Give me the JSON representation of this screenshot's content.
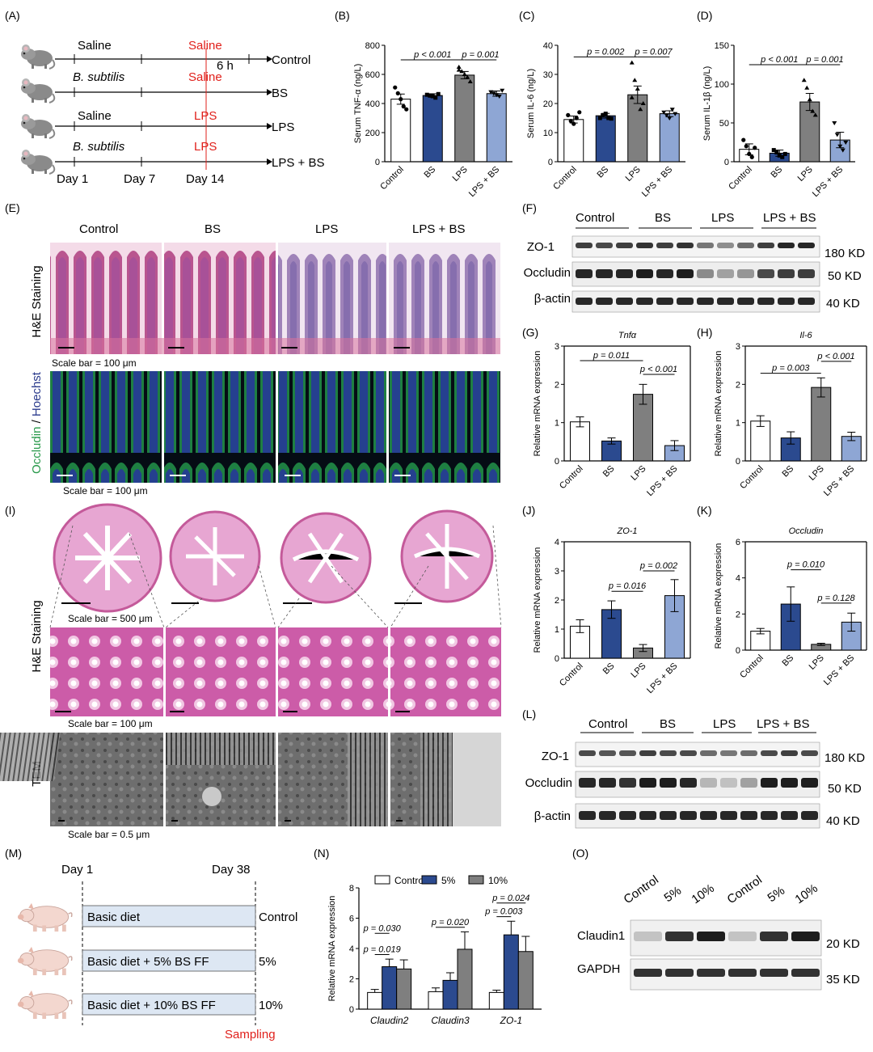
{
  "colors": {
    "control": "#ffffff",
    "bs": "#2b4a8f",
    "lps": "#7f7f7f",
    "lps_bs": "#8ea6d4",
    "red_text": "#e0201b",
    "he_pink": "#c45a9a",
    "fluor_green": "#2a9a4c",
    "fluor_blue": "#2a3a8c",
    "diet_box": "#dde7f3"
  },
  "panel_letters": [
    "(A)",
    "(B)",
    "(C)",
    "(D)",
    "(E)",
    "(F)",
    "(G)",
    "(H)",
    "(I)",
    "(J)",
    "(K)",
    "(L)",
    "(M)",
    "(N)",
    "(O)"
  ],
  "panel_A": {
    "rows": [
      {
        "left": "Saline",
        "left_italic": false,
        "right": "Saline",
        "end": "Control"
      },
      {
        "left": "B. subtilis",
        "left_italic": true,
        "right": "Saline",
        "end": "BS"
      },
      {
        "left": "Saline",
        "left_italic": false,
        "right": "LPS",
        "end": "LPS"
      },
      {
        "left": "B. subtilis",
        "left_italic": true,
        "right": "LPS",
        "end": "LPS + BS"
      }
    ],
    "six_h": "6 h",
    "days": [
      "Day 1",
      "Day 7",
      "Day 14"
    ]
  },
  "groups": [
    "Control",
    "BS",
    "LPS",
    "LPS + BS"
  ],
  "chart_data": [
    {
      "panel": "B",
      "type": "bar",
      "ylabel": "Serum TNF-α (ng/L)",
      "ylim": [
        0,
        800
      ],
      "yticks": [
        0,
        200,
        400,
        600,
        800
      ],
      "categories": [
        "Control",
        "BS",
        "LPS",
        "LPS + BS"
      ],
      "values": [
        430,
        455,
        595,
        468
      ],
      "errors": [
        35,
        12,
        25,
        18
      ],
      "points": [
        [
          510,
          470,
          430,
          380,
          360
        ],
        [
          460,
          455,
          450,
          440,
          465
        ],
        [
          650,
          620,
          600,
          580,
          550,
          630
        ],
        [
          480,
          470,
          460,
          450,
          490
        ]
      ],
      "annotations": [
        {
          "text": "p < 0.001",
          "from": 0,
          "to": 2,
          "y": 700
        },
        {
          "text": "p = 0.001",
          "from": 2,
          "to": 3,
          "y": 700
        }
      ]
    },
    {
      "panel": "C",
      "type": "bar",
      "ylabel": "Serum IL-6 (ng/L)",
      "ylim": [
        0,
        40
      ],
      "yticks": [
        0,
        10,
        20,
        30,
        40
      ],
      "categories": [
        "Control",
        "BS",
        "LPS",
        "LPS + BS"
      ],
      "values": [
        14.5,
        15.8,
        23,
        16.5
      ],
      "errors": [
        1.2,
        0.8,
        3,
        1
      ],
      "points": [
        [
          16,
          14,
          13,
          15,
          17
        ],
        [
          15,
          16,
          16.5,
          15,
          14.8
        ],
        [
          34,
          28,
          25,
          18,
          20,
          22
        ],
        [
          17,
          16,
          15,
          18,
          16.5
        ]
      ],
      "annotations": [
        {
          "text": "p = 0.002",
          "from": 0,
          "to": 2,
          "y": 36
        },
        {
          "text": "p = 0.007",
          "from": 2,
          "to": 3,
          "y": 36
        }
      ]
    },
    {
      "panel": "D",
      "type": "bar",
      "ylabel": "Serum IL-1β (ng/L)",
      "ylim": [
        0,
        150
      ],
      "yticks": [
        0,
        50,
        100,
        150
      ],
      "categories": [
        "Control",
        "BS",
        "LPS",
        "LPS + BS"
      ],
      "values": [
        16,
        11,
        77,
        28
      ],
      "errors": [
        7,
        4,
        11,
        10
      ],
      "points": [
        [
          28,
          20,
          10,
          6,
          18
        ],
        [
          15,
          12,
          8,
          6,
          10
        ],
        [
          105,
          95,
          80,
          65,
          60
        ],
        [
          50,
          35,
          20,
          15,
          25
        ]
      ],
      "annotations": [
        {
          "text": "p < 0.001",
          "from": 0,
          "to": 2,
          "y": 125
        },
        {
          "text": "p = 0.001",
          "from": 2,
          "to": 3,
          "y": 125
        }
      ]
    },
    {
      "panel": "G",
      "type": "bar",
      "title": "Tnfα",
      "ylabel": "Relative mRNA expression",
      "ylim": [
        0,
        3
      ],
      "yticks": [
        0,
        1,
        2,
        3
      ],
      "categories": [
        "Control",
        "BS",
        "LPS",
        "LPS + BS"
      ],
      "values": [
        1.02,
        0.52,
        1.74,
        0.4
      ],
      "errors": [
        0.13,
        0.08,
        0.26,
        0.13
      ],
      "annotations": [
        {
          "text": "p = 0.011",
          "from": 0,
          "to": 2,
          "y": 2.62
        },
        {
          "text": "p < 0.001",
          "from": 2,
          "to": 3,
          "y": 2.26
        }
      ]
    },
    {
      "panel": "H",
      "type": "bar",
      "title": "Il-6",
      "ylabel": "Relative mRNA expression",
      "ylim": [
        0,
        3
      ],
      "yticks": [
        0,
        1,
        2,
        3
      ],
      "categories": [
        "Control",
        "BS",
        "LPS",
        "LPS + BS"
      ],
      "values": [
        1.04,
        0.6,
        1.92,
        0.64
      ],
      "errors": [
        0.14,
        0.16,
        0.25,
        0.11
      ],
      "annotations": [
        {
          "text": "p = 0.003",
          "from": 0,
          "to": 2,
          "y": 2.29
        },
        {
          "text": "p < 0.001",
          "from": 2,
          "to": 3,
          "y": 2.6
        }
      ]
    },
    {
      "panel": "J",
      "type": "bar",
      "title": "ZO-1",
      "ylabel": "Relative mRNA expression",
      "ylim": [
        0,
        4
      ],
      "yticks": [
        0,
        1,
        2,
        3,
        4
      ],
      "categories": [
        "Control",
        "BS",
        "LPS",
        "LPS + BS"
      ],
      "values": [
        1.1,
        1.67,
        0.35,
        2.15
      ],
      "errors": [
        0.22,
        0.3,
        0.12,
        0.55
      ],
      "annotations": [
        {
          "text": "p = 0.016",
          "from": 1,
          "to": 2,
          "y": 2.3
        },
        {
          "text": "p = 0.002",
          "from": 2,
          "to": 3,
          "y": 3.0
        }
      ]
    },
    {
      "panel": "K",
      "type": "bar",
      "title": "Occludin",
      "ylabel": "Relative mRNA expression",
      "ylim": [
        0,
        6
      ],
      "yticks": [
        0,
        2,
        4,
        6
      ],
      "categories": [
        "Control",
        "BS",
        "LPS",
        "LPS + BS"
      ],
      "values": [
        1.05,
        2.55,
        0.32,
        1.55
      ],
      "errors": [
        0.15,
        0.95,
        0.06,
        0.5
      ],
      "annotations": [
        {
          "text": "p = 0.010",
          "from": 1,
          "to": 2,
          "y": 4.45
        },
        {
          "text": "p = 0.128",
          "from": 2,
          "to": 3,
          "y": 2.6
        }
      ]
    },
    {
      "panel": "N",
      "type": "bar",
      "ylabel": "Relative mRNA expression",
      "ylim": [
        0,
        8
      ],
      "yticks": [
        0,
        2,
        4,
        6,
        8
      ],
      "categories": [
        "Claudin2",
        "Claudin3",
        "ZO-1"
      ],
      "series": [
        {
          "name": "Control",
          "values": [
            1.1,
            1.15,
            1.1
          ],
          "errors": [
            0.2,
            0.25,
            0.15
          ]
        },
        {
          "name": "5%",
          "values": [
            2.8,
            1.9,
            4.9
          ],
          "errors": [
            0.5,
            0.5,
            0.9
          ]
        },
        {
          "name": "10%",
          "values": [
            2.65,
            3.95,
            3.8
          ],
          "errors": [
            0.6,
            1.15,
            1.0
          ]
        }
      ],
      "annotations": [
        {
          "text": "p = 0.030",
          "cat": 0,
          "from": 0,
          "to": 1,
          "y": 5.0
        },
        {
          "text": "p = 0.019",
          "cat": 0,
          "from": 0,
          "to": 1,
          "y": 3.6
        },
        {
          "text": "p = 0.020",
          "cat": 1,
          "from": 0,
          "to": 2,
          "y": 5.4
        },
        {
          "text": "p = 0.024",
          "cat": 2,
          "from": 0,
          "to": 2,
          "y": 7.0
        },
        {
          "text": "p = 0.003",
          "cat": 2,
          "from": 0,
          "to": 1,
          "y": 6.1
        }
      ]
    }
  ],
  "panel_E": {
    "headers": [
      "Control",
      "BS",
      "LPS",
      "LPS + BS"
    ],
    "he_label": "H&E Staining",
    "fluor_label_a": "Occludin",
    "fluor_label_sep": " / ",
    "fluor_label_b": "Hoechst",
    "scale_1": "Scale bar = 100 μm",
    "scale_2": "Scale bar = 100 μm"
  },
  "panel_F": {
    "groups": [
      "Control",
      "BS",
      "LPS",
      "LPS + BS"
    ],
    "rows": [
      "ZO-1",
      "Occludin",
      "β-actin"
    ],
    "sizes": [
      "180 KD",
      "50 KD",
      "40 KD"
    ]
  },
  "panel_I": {
    "he_label": "H&E Staining",
    "tem_label": "TEM",
    "scale_1": "Scale bar = 500 μm",
    "scale_2": "Scale bar = 100 μm",
    "scale_3": "Scale bar = 0.5 μm"
  },
  "panel_L": {
    "groups": [
      "Control",
      "BS",
      "LPS",
      "LPS + BS"
    ],
    "rows": [
      "ZO-1",
      "Occludin",
      "β-actin"
    ],
    "sizes": [
      "180 KD",
      "50 KD",
      "40 KD"
    ]
  },
  "panel_M": {
    "day_start": "Day 1",
    "day_end": "Day 38",
    "diets": [
      "Basic diet",
      "Basic diet + 5% BS FF",
      "Basic diet + 10% BS FF"
    ],
    "groups": [
      "Control",
      "5%",
      "10%"
    ],
    "sampling": "Sampling"
  },
  "panel_O": {
    "lanes": [
      "Control",
      "5%",
      "10%",
      "Control",
      "5%",
      "10%"
    ],
    "rows": [
      "Claudin1",
      "GAPDH"
    ],
    "sizes": [
      "20 KD",
      "35 KD"
    ]
  }
}
